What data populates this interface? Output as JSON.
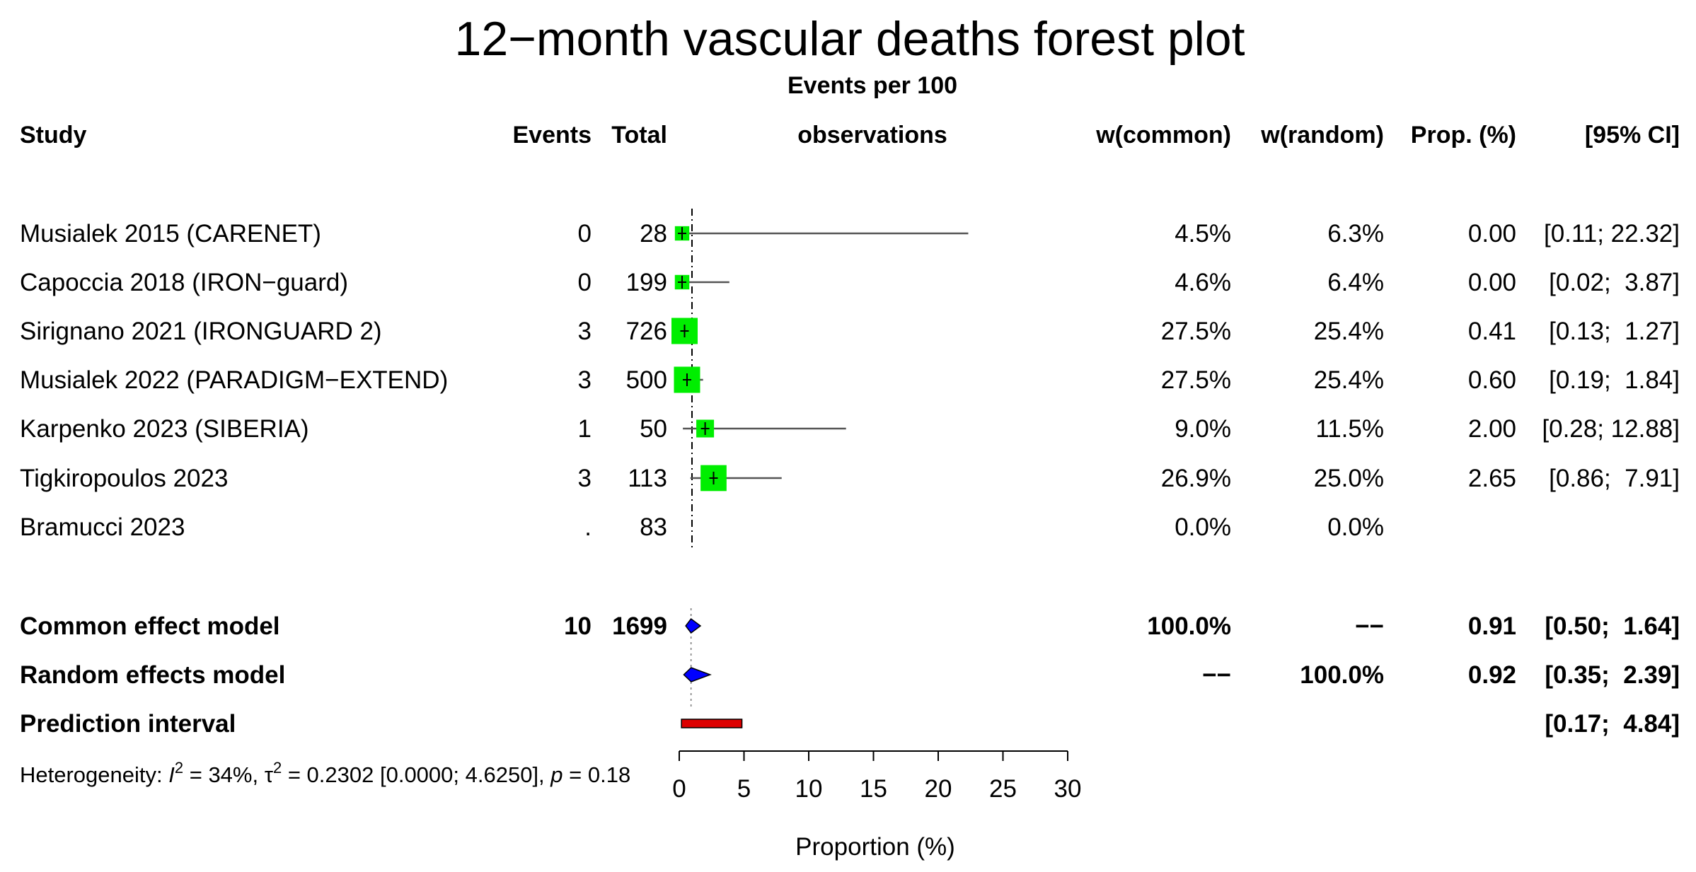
{
  "chart_data": {
    "type": "forest",
    "title": "12−month vascular deaths forest plot",
    "headers": {
      "study": "Study",
      "events": "Events",
      "total": "Total",
      "effect_line1": "Events per 100",
      "effect_line2": "observations",
      "w_common": "w(common)",
      "w_random": "w(random)",
      "prop": "Prop. (%)",
      "ci": "[95% CI]"
    },
    "studies": [
      {
        "name": "Musialek 2015 (CARENET)",
        "events": "0",
        "total": "28",
        "w_common": "4.5%",
        "w_random": "6.3%",
        "prop": "0.00",
        "ci": "[0.11; 22.32]",
        "est": 0.0,
        "lo": 0.11,
        "hi": 22.32,
        "weight": 4.5
      },
      {
        "name": "Capoccia 2018 (IRON−guard)",
        "events": "0",
        "total": "199",
        "w_common": "4.6%",
        "w_random": "6.4%",
        "prop": "0.00",
        "ci": "[0.02;  3.87]",
        "est": 0.0,
        "lo": 0.02,
        "hi": 3.87,
        "weight": 4.6
      },
      {
        "name": "Sirignano 2021 (IRONGUARD 2)",
        "events": "3",
        "total": "726",
        "w_common": "27.5%",
        "w_random": "25.4%",
        "prop": "0.41",
        "ci": "[0.13;  1.27]",
        "est": 0.41,
        "lo": 0.13,
        "hi": 1.27,
        "weight": 27.5
      },
      {
        "name": "Musialek 2022 (PARADIGM−EXTEND)",
        "events": "3",
        "total": "500",
        "w_common": "27.5%",
        "w_random": "25.4%",
        "prop": "0.60",
        "ci": "[0.19;  1.84]",
        "est": 0.6,
        "lo": 0.19,
        "hi": 1.84,
        "weight": 27.5
      },
      {
        "name": "Karpenko 2023 (SIBERIA)",
        "events": "1",
        "total": "50",
        "w_common": "9.0%",
        "w_random": "11.5%",
        "prop": "2.00",
        "ci": "[0.28; 12.88]",
        "est": 2.0,
        "lo": 0.28,
        "hi": 12.88,
        "weight": 9.0
      },
      {
        "name": "Tigkiropoulos 2023",
        "events": "3",
        "total": "113",
        "w_common": "26.9%",
        "w_random": "25.0%",
        "prop": "2.65",
        "ci": "[0.86;  7.91]",
        "est": 2.65,
        "lo": 0.86,
        "hi": 7.91,
        "weight": 26.9
      },
      {
        "name": "Bramucci 2023",
        "events": ".",
        "total": "83",
        "w_common": "0.0%",
        "w_random": "0.0%",
        "prop": "",
        "ci": "",
        "est": null,
        "lo": null,
        "hi": null,
        "weight": 0.0
      }
    ],
    "common": {
      "name": "Common effect model",
      "events": "10",
      "total": "1699",
      "w_common": "100.0%",
      "w_random": "−−",
      "prop": "0.91",
      "ci": "[0.50;  1.64]",
      "est": 0.91,
      "lo": 0.5,
      "hi": 1.64
    },
    "random": {
      "name": "Random effects model",
      "w_common": "−−",
      "w_random": "100.0%",
      "prop": "0.92",
      "ci": "[0.35;  2.39]",
      "est": 0.92,
      "lo": 0.35,
      "hi": 2.39
    },
    "prediction": {
      "name": "Prediction interval",
      "ci": "[0.17;  4.84]",
      "lo": 0.17,
      "hi": 4.84
    },
    "heterogeneity": {
      "prefix": "Heterogeneity: ",
      "i2_symbol": "I",
      "i2_value": " = 34%, ",
      "tau2_symbol": "τ",
      "tau2_value": " = 0.2302 [0.0000; 4.6250], ",
      "p_symbol": "p",
      "p_value": " = 0.18",
      "superscript": "2"
    },
    "x_axis": {
      "label": "Proportion (%)",
      "range": [
        0,
        30
      ],
      "ticks": [
        0,
        5,
        10,
        15,
        20,
        25,
        30
      ],
      "tick_labels": [
        "0",
        "5",
        "10",
        "15",
        "20",
        "25",
        "30"
      ]
    },
    "reference_line": 0.91,
    "colors": {
      "study_square": "#00ee00",
      "diamond": "#0000ff",
      "prediction": "#dd0000",
      "ci_line": "#555555"
    }
  }
}
